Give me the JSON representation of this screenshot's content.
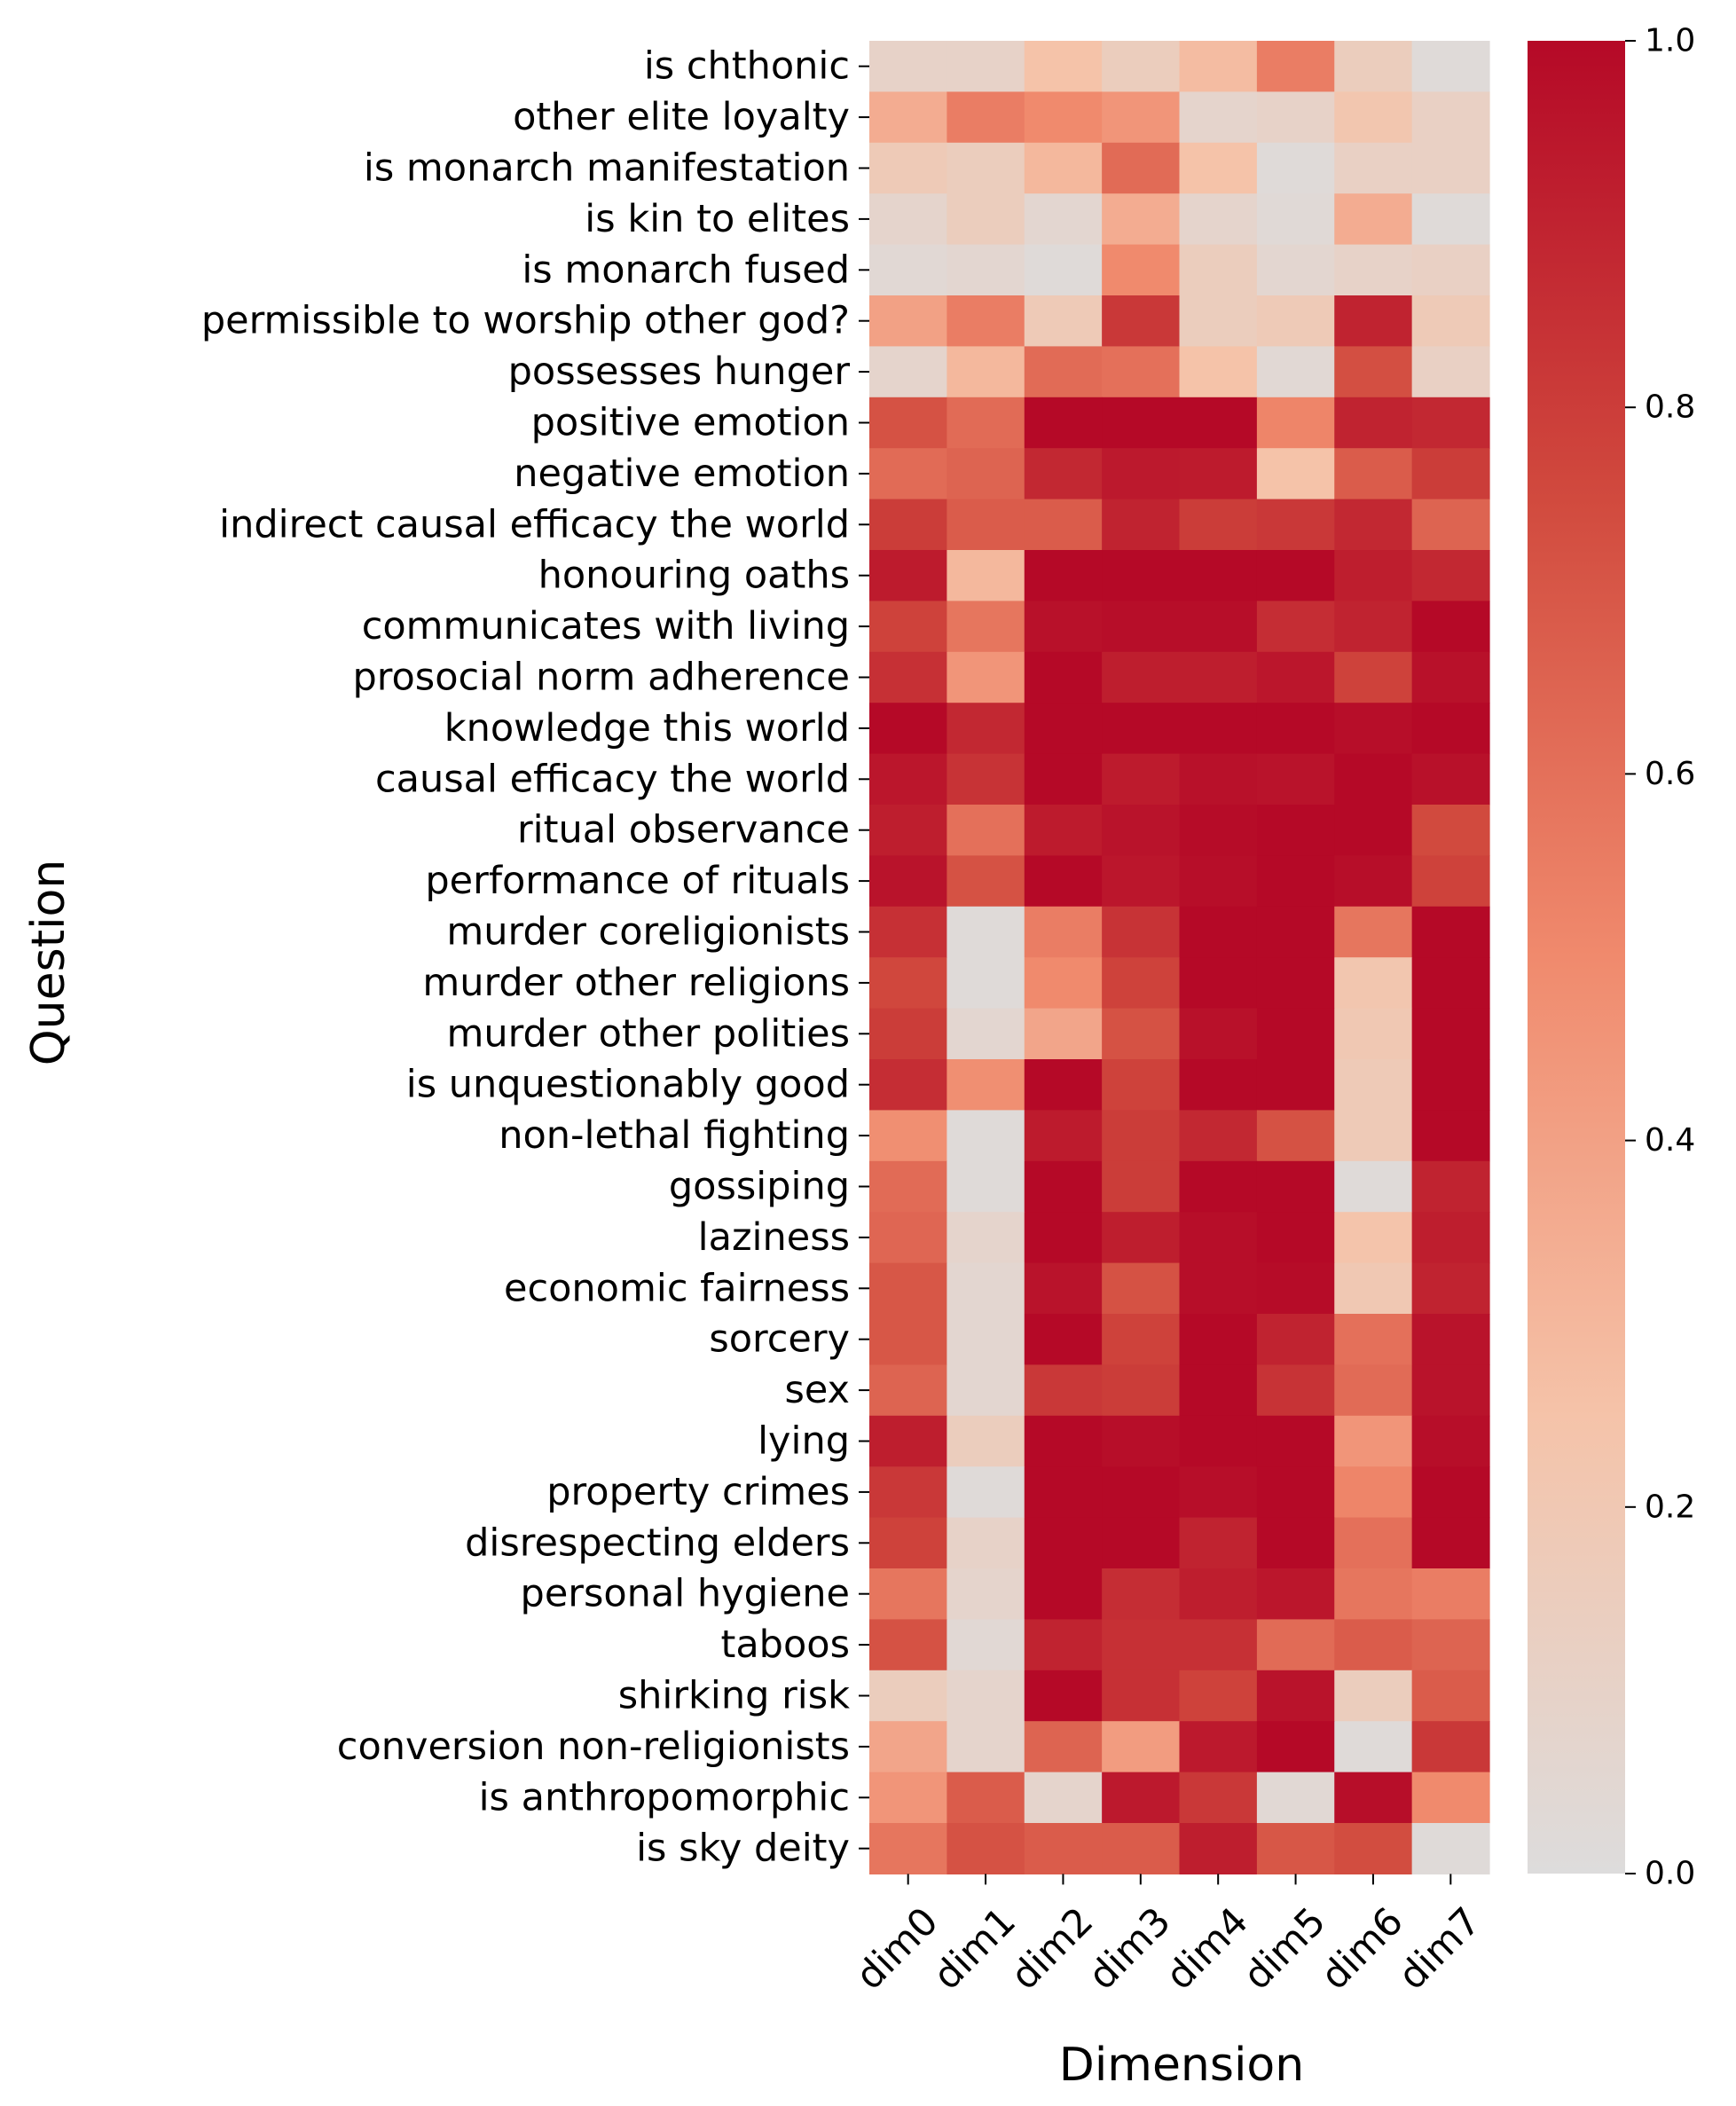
{
  "chart_data": {
    "type": "heatmap",
    "xlabel": "Dimension",
    "ylabel": "Question",
    "x_categories": [
      "dim0",
      "dim1",
      "dim2",
      "dim3",
      "dim4",
      "dim5",
      "dim6",
      "dim7"
    ],
    "y_categories": [
      "is chthonic",
      "other elite loyalty",
      "is monarch manifestation",
      "is kin to elites",
      "is monarch fused",
      "permissible to worship other god?",
      "possesses hunger",
      "positive emotion",
      "negative emotion",
      "indirect causal efficacy the world",
      "honouring oaths",
      "communicates with living",
      "prosocial norm adherence",
      "knowledge this world",
      "causal efficacy the world",
      "ritual observance",
      "performance of rituals",
      "murder coreligionists",
      "murder other religions",
      "murder other polities",
      "is unquestionably good",
      "non-lethal fighting",
      "gossiping",
      "laziness",
      "economic fairness",
      "sorcery",
      "sex",
      "lying",
      "property crimes",
      "disrespecting elders",
      "personal hygiene",
      "taboos",
      "shirking risk",
      "conversion non-religionists",
      "is anthropomorphic",
      "is sky deity"
    ],
    "values": [
      [
        0.1,
        0.1,
        0.25,
        0.15,
        0.28,
        0.55,
        0.15,
        0.02
      ],
      [
        0.35,
        0.55,
        0.5,
        0.45,
        0.08,
        0.1,
        0.22,
        0.12
      ],
      [
        0.18,
        0.15,
        0.3,
        0.62,
        0.25,
        0.02,
        0.12,
        0.12
      ],
      [
        0.08,
        0.15,
        0.06,
        0.35,
        0.08,
        0.03,
        0.35,
        0.02
      ],
      [
        0.04,
        0.06,
        0.02,
        0.5,
        0.15,
        0.06,
        0.1,
        0.12
      ],
      [
        0.4,
        0.55,
        0.18,
        0.82,
        0.15,
        0.18,
        0.9,
        0.18
      ],
      [
        0.08,
        0.3,
        0.62,
        0.6,
        0.25,
        0.04,
        0.73,
        0.12
      ],
      [
        0.72,
        0.62,
        1.0,
        1.0,
        1.0,
        0.52,
        0.9,
        0.88
      ],
      [
        0.62,
        0.65,
        0.88,
        0.94,
        0.93,
        0.25,
        0.68,
        0.8
      ],
      [
        0.8,
        0.68,
        0.68,
        0.9,
        0.8,
        0.82,
        0.88,
        0.65
      ],
      [
        0.93,
        0.3,
        1.0,
        1.0,
        1.0,
        1.0,
        0.92,
        0.88
      ],
      [
        0.78,
        0.58,
        0.97,
        0.98,
        0.98,
        0.86,
        0.9,
        1.0
      ],
      [
        0.85,
        0.45,
        1.0,
        0.92,
        0.92,
        0.95,
        0.78,
        0.97
      ],
      [
        1.0,
        0.88,
        1.0,
        1.0,
        1.0,
        1.0,
        0.98,
        1.0
      ],
      [
        0.95,
        0.84,
        1.0,
        0.93,
        0.97,
        0.96,
        1.0,
        0.97
      ],
      [
        0.92,
        0.6,
        0.93,
        0.96,
        0.99,
        1.0,
        1.0,
        0.75
      ],
      [
        0.96,
        0.72,
        1.0,
        0.95,
        0.98,
        1.0,
        0.98,
        0.78
      ],
      [
        0.85,
        0.02,
        0.55,
        0.84,
        1.0,
        1.0,
        0.58,
        1.0
      ],
      [
        0.76,
        0.02,
        0.5,
        0.78,
        1.0,
        1.0,
        0.22,
        1.0
      ],
      [
        0.8,
        0.06,
        0.38,
        0.72,
        0.97,
        1.0,
        0.2,
        1.0
      ],
      [
        0.86,
        0.48,
        1.0,
        0.78,
        1.0,
        1.0,
        0.18,
        1.0
      ],
      [
        0.48,
        0.02,
        0.93,
        0.8,
        0.88,
        0.72,
        0.18,
        1.0
      ],
      [
        0.62,
        0.02,
        1.0,
        0.8,
        1.0,
        1.0,
        0.02,
        0.9
      ],
      [
        0.64,
        0.08,
        1.0,
        0.92,
        0.98,
        1.0,
        0.24,
        0.92
      ],
      [
        0.7,
        0.06,
        0.96,
        0.72,
        0.98,
        0.99,
        0.2,
        0.9
      ],
      [
        0.7,
        0.06,
        1.0,
        0.78,
        1.0,
        0.9,
        0.6,
        0.96
      ],
      [
        0.65,
        0.06,
        0.82,
        0.8,
        1.0,
        0.84,
        0.62,
        0.96
      ],
      [
        0.92,
        0.15,
        1.0,
        0.98,
        1.0,
        1.0,
        0.45,
        0.98
      ],
      [
        0.82,
        0.02,
        1.0,
        1.0,
        0.98,
        1.0,
        0.52,
        1.0
      ],
      [
        0.78,
        0.1,
        1.0,
        1.0,
        0.9,
        1.0,
        0.6,
        1.0
      ],
      [
        0.58,
        0.08,
        1.0,
        0.86,
        0.92,
        0.95,
        0.58,
        0.55
      ],
      [
        0.72,
        0.04,
        0.9,
        0.85,
        0.85,
        0.62,
        0.68,
        0.65
      ],
      [
        0.15,
        0.08,
        1.0,
        0.85,
        0.78,
        0.96,
        0.15,
        0.68
      ],
      [
        0.38,
        0.08,
        0.65,
        0.42,
        0.94,
        1.0,
        0.02,
        0.82
      ],
      [
        0.45,
        0.68,
        0.08,
        0.94,
        0.82,
        0.04,
        0.98,
        0.5
      ],
      [
        0.58,
        0.72,
        0.68,
        0.68,
        0.92,
        0.7,
        0.74,
        0.02
      ]
    ],
    "colorbar": {
      "min": 0.0,
      "max": 1.0,
      "ticks": [
        "0.0",
        "0.2",
        "0.4",
        "0.6",
        "0.8",
        "1.0"
      ]
    },
    "colormap": [
      "#dddcdc",
      "#f5c3a9",
      "#f08a6d",
      "#d14a3e",
      "#b50927"
    ]
  }
}
